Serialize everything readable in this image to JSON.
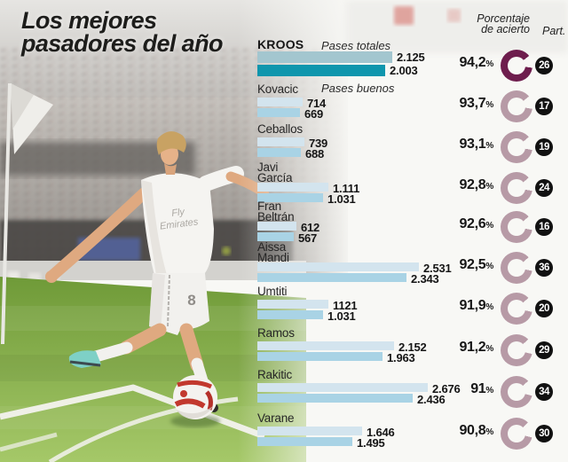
{
  "title": {
    "line1": "Los mejores",
    "line2": "pasadores del año"
  },
  "columns": {
    "pct_header_line1": "Porcentaje",
    "pct_header_line2": "de acierto",
    "part_header": "Part."
  },
  "legend": {
    "total": "Pases totales",
    "good": "Pases buenos"
  },
  "colors": {
    "bar_total": "#d3e4ee",
    "bar_good": "#a9d3e5",
    "bar_total_highlight": "#a3c6cf",
    "bar_good_highlight": "#0f96ad",
    "donut": "#b79aa6",
    "donut_highlight": "#6e1d4d",
    "badge_bg": "#111111",
    "badge_text": "#ffffff"
  },
  "photo": {
    "jersey_sponsor_line1": "Fly",
    "jersey_sponsor_line2": "Emirates",
    "shorts_number": "8"
  },
  "chart_data": {
    "type": "bar",
    "orientation": "horizontal",
    "title": "Los mejores pasadores del año",
    "series_labels": [
      "Pases totales",
      "Pases buenos"
    ],
    "xmax": 2676,
    "pct_suffix": "%",
    "players": [
      {
        "name_lines": [
          "KROOS"
        ],
        "highlight": true,
        "total": 2125,
        "total_label": "2.125",
        "good": 2003,
        "good_label": "2.003",
        "pct_value": 94.2,
        "pct_label": "94,2",
        "part": "26"
      },
      {
        "name_lines": [
          "Kovacic"
        ],
        "highlight": false,
        "total": 714,
        "total_label": "714",
        "good": 669,
        "good_label": "669",
        "pct_value": 93.7,
        "pct_label": "93,7",
        "part": "17"
      },
      {
        "name_lines": [
          "Ceballos"
        ],
        "highlight": false,
        "total": 739,
        "total_label": "739",
        "good": 688,
        "good_label": "688",
        "pct_value": 93.1,
        "pct_label": "93,1",
        "part": "19"
      },
      {
        "name_lines": [
          "Javi",
          "García"
        ],
        "highlight": false,
        "total": 1111,
        "total_label": "1.111",
        "good": 1031,
        "good_label": "1.031",
        "pct_value": 92.8,
        "pct_label": "92,8",
        "part": "24"
      },
      {
        "name_lines": [
          "Fran",
          "Beltrán"
        ],
        "highlight": false,
        "total": 612,
        "total_label": "612",
        "good": 567,
        "good_label": "567",
        "pct_value": 92.6,
        "pct_label": "92,6",
        "part": "16"
      },
      {
        "name_lines": [
          "Aissa",
          "Mandi"
        ],
        "highlight": false,
        "total": 2531,
        "total_label": "2.531",
        "good": 2343,
        "good_label": "2.343",
        "pct_value": 92.5,
        "pct_label": "92,5",
        "part": "36"
      },
      {
        "name_lines": [
          "Umtiti"
        ],
        "highlight": false,
        "total": 1121,
        "total_label": "1121",
        "good": 1031,
        "good_label": "1.031",
        "pct_value": 91.9,
        "pct_label": "91,9",
        "part": "20"
      },
      {
        "name_lines": [
          "Ramos"
        ],
        "highlight": false,
        "total": 2152,
        "total_label": "2.152",
        "good": 1963,
        "good_label": "1.963",
        "pct_value": 91.2,
        "pct_label": "91,2",
        "part": "29"
      },
      {
        "name_lines": [
          "Rakitic"
        ],
        "highlight": false,
        "total": 2676,
        "total_label": "2.676",
        "good": 2436,
        "good_label": "2.436",
        "pct_value": 91.0,
        "pct_label": "91",
        "part": "34"
      },
      {
        "name_lines": [
          "Varane"
        ],
        "highlight": false,
        "total": 1646,
        "total_label": "1.646",
        "good": 1495,
        "good_label": "1.495",
        "pct_value": 90.8,
        "pct_label": "90,8",
        "part": "30"
      }
    ]
  }
}
